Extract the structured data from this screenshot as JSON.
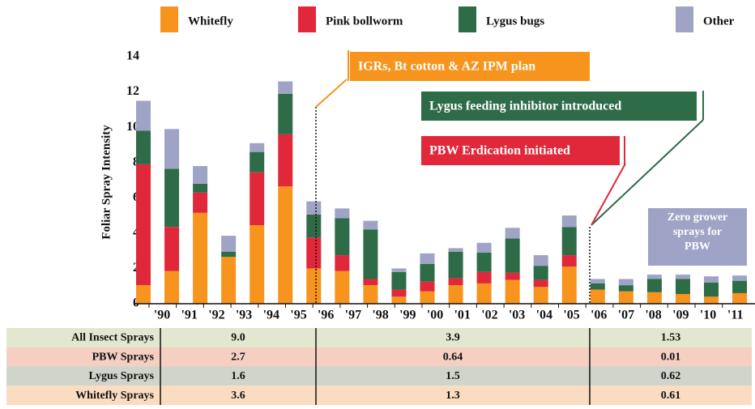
{
  "chart_data": {
    "type": "stacked_bar",
    "y_label": "Foliar Spray Intensity",
    "categories": [
      "'90",
      "'91",
      "'92",
      "'93",
      "'94",
      "'95",
      "'96",
      "'97",
      "'98",
      "'99",
      "'00",
      "'01",
      "'02",
      "'03",
      "'04",
      "'05",
      "'06",
      "'07",
      "'08",
      "'09",
      "'10",
      "'11"
    ],
    "series": [
      {
        "name": "Whitefly",
        "color": "#f7941d",
        "values": [
          1.05,
          1.85,
          5.15,
          2.65,
          4.45,
          6.65,
          2.0,
          1.85,
          1.05,
          0.4,
          0.7,
          1.05,
          1.15,
          1.35,
          0.95,
          2.1,
          0.8,
          0.7,
          0.65,
          0.55,
          0.4,
          0.6
        ]
      },
      {
        "name": "Pink bollworm",
        "color": "#e0283a",
        "values": [
          6.85,
          2.5,
          1.15,
          0,
          3.0,
          2.95,
          1.75,
          0.9,
          0.35,
          0.4,
          0.55,
          0.4,
          0.65,
          0.4,
          0.4,
          0.65,
          0,
          0,
          0,
          0,
          0,
          0
        ]
      },
      {
        "name": "Lygus bugs",
        "color": "#2e6b47",
        "values": [
          1.9,
          3.3,
          0.5,
          0.3,
          1.15,
          2.3,
          1.3,
          2.1,
          2.8,
          1.0,
          1.0,
          1.5,
          1.1,
          1.95,
          0.8,
          1.6,
          0.35,
          0.35,
          0.75,
          0.85,
          0.8,
          0.7
        ]
      },
      {
        "name": "Other",
        "color": "#9fa3c5",
        "values": [
          1.7,
          2.25,
          1.0,
          0.9,
          0.5,
          0.7,
          0.75,
          0.55,
          0.5,
          0.2,
          0.6,
          0.2,
          0.55,
          0.6,
          0.6,
          0.65,
          0.25,
          0.35,
          0.25,
          0.25,
          0.35,
          0.3
        ]
      }
    ],
    "ylim": [
      0,
      14
    ],
    "yticks": [
      0,
      2,
      4,
      6,
      8,
      10,
      12,
      14
    ],
    "legend": "top",
    "annotations": [
      {
        "lines": [
          "IGRs, Bt cotton & AZ IPM plan"
        ],
        "color": "#f7941d"
      },
      {
        "lines": [
          "Lygus feeding inhibitor introduced"
        ],
        "color": "#2e6b47"
      },
      {
        "lines": [
          "PBW Erdication initiated"
        ],
        "color": "#e0283a"
      },
      {
        "lines": [
          "Zero grower",
          "sprays for",
          "PBW"
        ],
        "color": "#9fa3c5"
      }
    ]
  },
  "table": {
    "rows": [
      {
        "label": "All Insect Sprays",
        "values": [
          "9.0",
          "3.9",
          "1.53"
        ]
      },
      {
        "label": "PBW Sprays",
        "values": [
          "2.7",
          "0.64",
          "0.01"
        ]
      },
      {
        "label": "Lygus Sprays",
        "values": [
          "1.6",
          "1.5",
          "0.62"
        ]
      },
      {
        "label": "Whitefly Sprays",
        "values": [
          "3.6",
          "1.3",
          "0.61"
        ]
      }
    ]
  }
}
